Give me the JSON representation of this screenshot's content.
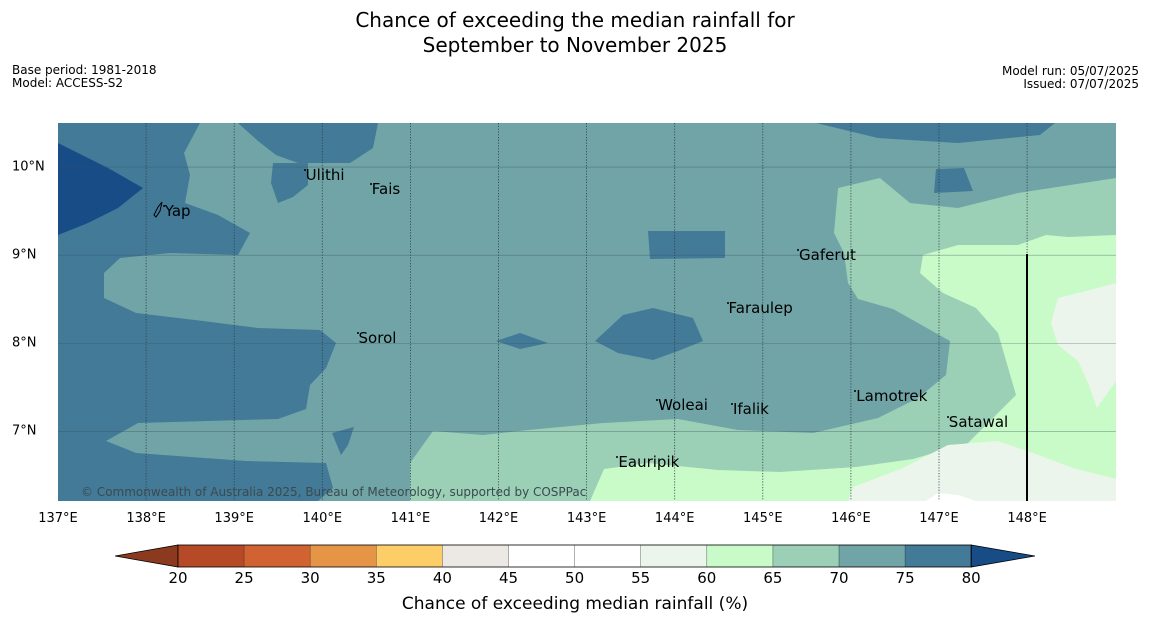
{
  "title_line1": "Chance of exceeding the median rainfall for",
  "title_line2": "September to November 2025",
  "meta_left": {
    "base_period": "Base period: 1981-2018",
    "model": "Model: ACCESS-S2"
  },
  "meta_right": {
    "model_run": "Model run: 05/07/2025",
    "issued": "Issued: 07/07/2025"
  },
  "map": {
    "lon_range": [
      137,
      149
    ],
    "lat_range": [
      6.2,
      10.5
    ],
    "lon_labels": [
      "137°E",
      "138°E",
      "139°E",
      "140°E",
      "141°E",
      "142°E",
      "143°E",
      "144°E",
      "145°E",
      "146°E",
      "147°E",
      "148°E"
    ],
    "lat_labels": [
      "10°N",
      "9°N",
      "8°N",
      "7°N"
    ],
    "places": [
      {
        "name": "Yap",
        "lon": 138.2,
        "lat": 9.55
      },
      {
        "name": "Ulithi",
        "lon": 139.8,
        "lat": 9.95
      },
      {
        "name": "Fais",
        "lon": 140.55,
        "lat": 9.8
      },
      {
        "name": "Gaferut",
        "lon": 145.4,
        "lat": 9.05
      },
      {
        "name": "Faraulep",
        "lon": 144.6,
        "lat": 8.45
      },
      {
        "name": "Sorol",
        "lon": 140.4,
        "lat": 8.1
      },
      {
        "name": "Woleai",
        "lon": 143.8,
        "lat": 7.35
      },
      {
        "name": "Ifalik",
        "lon": 144.65,
        "lat": 7.3
      },
      {
        "name": "Lamotrek",
        "lon": 146.05,
        "lat": 7.45
      },
      {
        "name": "Satawal",
        "lon": 147.1,
        "lat": 7.15
      },
      {
        "name": "Eauripik",
        "lon": 143.35,
        "lat": 6.7
      }
    ],
    "copyright": "© Commonwealth of Australia 2025, Bureau of Meteorology, supported by COSPPac"
  },
  "legend": {
    "label": "Chance of exceeding median rainfall (%)",
    "ticks": [
      "20",
      "25",
      "30",
      "35",
      "40",
      "45",
      "50",
      "55",
      "60",
      "65",
      "70",
      "75",
      "80"
    ],
    "colors": [
      "#8b3a20",
      "#b64a26",
      "#d06331",
      "#e69446",
      "#fdcd67",
      "#ece8e4",
      "#ffffff",
      "#ffffff",
      "#ecf5ec",
      "#c9fbc8",
      "#9bcfb6",
      "#70a4a6",
      "#427a98",
      "#174c87"
    ]
  }
}
